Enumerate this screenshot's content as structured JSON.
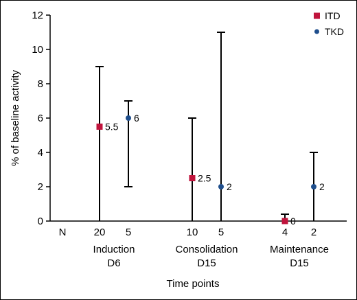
{
  "chart_data": {
    "type": "scatter",
    "xlabel": "Time points",
    "ylabel": "% of baseline activity",
    "ylim": [
      0,
      12
    ],
    "yticks": [
      0,
      2,
      4,
      6,
      8,
      10,
      12
    ],
    "n_label": "N",
    "groups": [
      {
        "label_line1": "Induction",
        "label_line2": "D6"
      },
      {
        "label_line1": "Consolidation",
        "label_line2": "D15"
      },
      {
        "label_line1": "Maintenance",
        "label_line2": "D15"
      }
    ],
    "series": [
      {
        "name": "ITD",
        "color": "#c0143c",
        "marker": "square",
        "points": [
          {
            "group": 0,
            "n": "20",
            "value": 5.5,
            "label": "5.5",
            "low": 0,
            "high": 9
          },
          {
            "group": 1,
            "n": "10",
            "value": 2.5,
            "label": "2.5",
            "low": 0,
            "high": 6
          },
          {
            "group": 2,
            "n": "4",
            "value": 0,
            "label": "0",
            "low": 0,
            "high": 0.4
          }
        ]
      },
      {
        "name": "TKD",
        "color": "#1f4e8c",
        "marker": "circle",
        "points": [
          {
            "group": 0,
            "n": "5",
            "value": 6,
            "label": "6",
            "low": 2,
            "high": 7
          },
          {
            "group": 1,
            "n": "5",
            "value": 2,
            "label": "2",
            "low": 0,
            "high": 11
          },
          {
            "group": 2,
            "n": "2",
            "value": 2,
            "label": "2",
            "low": 0,
            "high": 4
          }
        ]
      }
    ],
    "legend_position": "top-right",
    "grid": false
  }
}
